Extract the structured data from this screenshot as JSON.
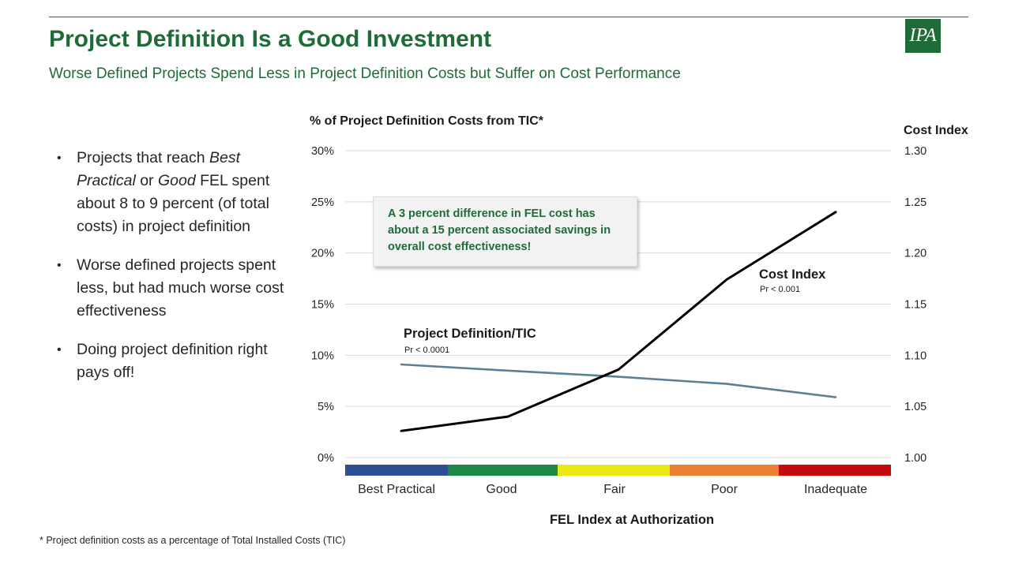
{
  "slide": {
    "title": "Project Definition Is a Good Investment",
    "subtitle": "Worse Defined Projects Spend Less in Project Definition Costs but Suffer on Cost Performance",
    "logo_text": "IPA",
    "footnote": "* Project definition costs as a percentage of Total Installed Costs (TIC)",
    "brand_color": "#1f6b3a"
  },
  "bullets": [
    {
      "parts": [
        {
          "text": "Projects that reach ",
          "italic": false
        },
        {
          "text": "Best Practical",
          "italic": true
        },
        {
          "text": " or ",
          "italic": false
        },
        {
          "text": "Good",
          "italic": true
        },
        {
          "text": " FEL spent about 8 to 9 percent (of total costs) in project definition",
          "italic": false
        }
      ]
    },
    {
      "parts": [
        {
          "text": "Worse defined projects spent less, but had much worse cost effectiveness",
          "italic": false
        }
      ]
    },
    {
      "parts": [
        {
          "text": "Doing project definition right pays off!",
          "italic": false
        }
      ]
    }
  ],
  "callout": {
    "text": "A 3 percent difference in FEL cost has about a 15 percent associated savings in overall cost effectiveness!"
  },
  "chart_data": {
    "type": "line",
    "title": "% of Project Definition Costs from TIC*",
    "xlabel": "FEL Index at Authorization",
    "categories": [
      "Best Practical",
      "Good",
      "Fair",
      "Poor",
      "Inadequate"
    ],
    "category_colors": [
      "#2e4f94",
      "#1c8a46",
      "#ece812",
      "#ec7f33",
      "#c4090f"
    ],
    "left_axis": {
      "label": "% of Project Definition Costs from TIC*",
      "ylim": [
        0,
        0.3
      ],
      "ticks": [
        0,
        0.05,
        0.1,
        0.15,
        0.2,
        0.25,
        0.3
      ],
      "tick_labels": [
        "0%",
        "5%",
        "10%",
        "15%",
        "20%",
        "25%",
        "30%"
      ]
    },
    "right_axis": {
      "label": "Cost Index",
      "ylim": [
        1.0,
        1.3
      ],
      "ticks": [
        1.0,
        1.05,
        1.1,
        1.15,
        1.2,
        1.25,
        1.3
      ],
      "tick_labels": [
        "1.00",
        "1.05",
        "1.10",
        "1.15",
        "1.20",
        "1.25",
        "1.30"
      ]
    },
    "series": [
      {
        "name": "Project Definition/TIC",
        "axis": "left",
        "color": "#5b7f95",
        "annotation": "Pr < 0.0001",
        "x": [
          0,
          1,
          2,
          3,
          4
        ],
        "values": [
          0.091,
          0.085,
          0.079,
          0.072,
          0.059
        ]
      },
      {
        "name": "Cost Index",
        "axis": "right",
        "color": "#000000",
        "annotation": "Pr < 0.001",
        "x": [
          0,
          1,
          2,
          3,
          4
        ],
        "values": [
          1.026,
          1.04,
          1.086,
          1.174,
          1.24
        ]
      }
    ],
    "grid": true
  }
}
